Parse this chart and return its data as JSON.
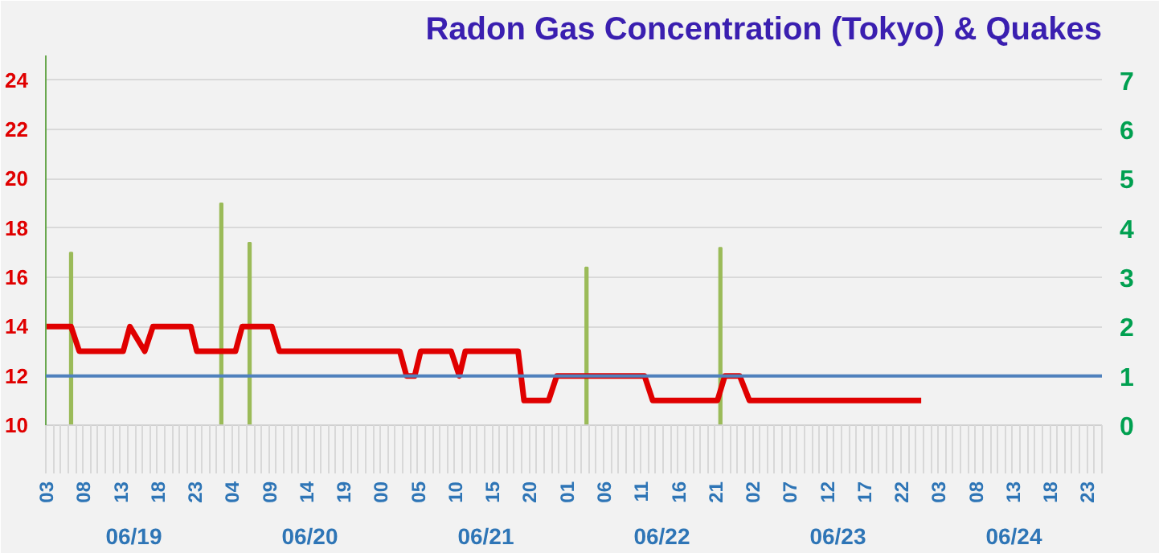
{
  "chart_data": {
    "type": "line",
    "title": "Radon Gas Concentration (Tokyo) & Quakes",
    "xlim": [
      3,
      145
    ],
    "xticks": [
      {
        "value": 3,
        "label": "03"
      },
      {
        "value": 8,
        "label": "08"
      },
      {
        "value": 13,
        "label": "13"
      },
      {
        "value": 18,
        "label": "18"
      },
      {
        "value": 23,
        "label": "23"
      },
      {
        "value": 28,
        "label": "04"
      },
      {
        "value": 33,
        "label": "09"
      },
      {
        "value": 38,
        "label": "14"
      },
      {
        "value": 43,
        "label": "19"
      },
      {
        "value": 48,
        "label": "00"
      },
      {
        "value": 53,
        "label": "05"
      },
      {
        "value": 58,
        "label": "10"
      },
      {
        "value": 63,
        "label": "15"
      },
      {
        "value": 68,
        "label": "20"
      },
      {
        "value": 73,
        "label": "01"
      },
      {
        "value": 78,
        "label": "06"
      },
      {
        "value": 83,
        "label": "11"
      },
      {
        "value": 88,
        "label": "16"
      },
      {
        "value": 93,
        "label": "21"
      },
      {
        "value": 98,
        "label": "02"
      },
      {
        "value": 103,
        "label": "07"
      },
      {
        "value": 108,
        "label": "12"
      },
      {
        "value": 113,
        "label": "17"
      },
      {
        "value": 118,
        "label": "22"
      },
      {
        "value": 123,
        "label": "03"
      },
      {
        "value": 128,
        "label": "08"
      },
      {
        "value": 133,
        "label": "13"
      },
      {
        "value": 138,
        "label": "18"
      },
      {
        "value": 143,
        "label": "23"
      }
    ],
    "annotations": [
      "06/19",
      "06/20",
      "06/21",
      "06/22",
      "06/23",
      "06/24"
    ],
    "ylim": [
      10,
      25
    ],
    "yticks": [
      10,
      12,
      14,
      16,
      18,
      20,
      22,
      24
    ],
    "y2lim": [
      0,
      7.5
    ],
    "y2ticks": [
      0,
      1,
      2,
      3,
      4,
      5,
      6,
      7
    ],
    "grid": "y",
    "ref_lines": [
      {
        "axis": "y",
        "value": 12,
        "label": null,
        "color": "#4f81bd"
      }
    ],
    "series": [
      {
        "color": "#e00000",
        "x": [
          3,
          6.4,
          7.5,
          13.4,
          14.3,
          16.3,
          17.4,
          22.5,
          23.3,
          28.5,
          29.4,
          33.4,
          34.4,
          50.6,
          51.5,
          52.6,
          53.4,
          57.5,
          58.6,
          59.4,
          66.5,
          67.3,
          70.6,
          71.7,
          83.5,
          84.6,
          93.3,
          94.3,
          96.3,
          97.6,
          120.7
        ],
        "values": [
          14,
          14,
          13,
          13,
          14,
          13,
          14,
          14,
          13,
          13,
          14,
          14,
          13,
          13,
          12,
          12,
          13,
          13,
          12,
          13,
          13,
          11,
          11,
          12,
          12,
          11,
          11,
          12,
          12,
          11,
          11
        ]
      },
      {
        "type": "bar",
        "axis": "y2",
        "color": "#9bbb59",
        "x": [
          6.4,
          26.6,
          30.4,
          75.7,
          93.7
        ],
        "values": [
          3.5,
          4.5,
          3.7,
          3.2,
          3.6
        ]
      }
    ]
  }
}
